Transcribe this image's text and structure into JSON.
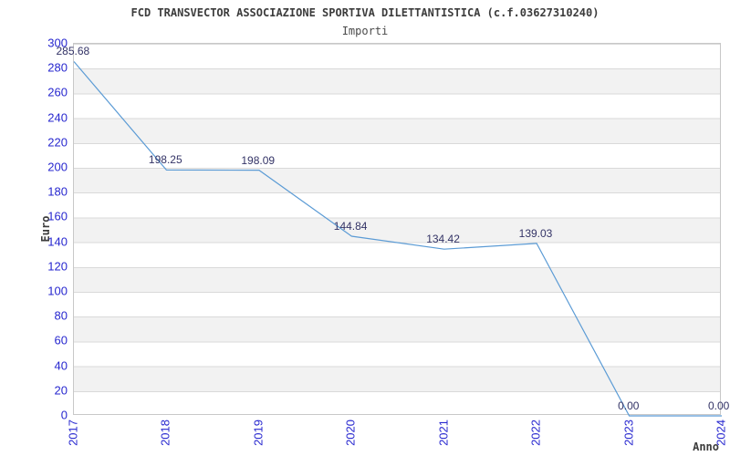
{
  "title": "FCD TRANSVECTOR ASSOCIAZIONE SPORTIVA DILETTANTISTICA (c.f.03627310240)",
  "subtitle": "Importi",
  "chart_data": {
    "type": "line",
    "x": [
      2017,
      2018,
      2019,
      2020,
      2021,
      2022,
      2023,
      2024
    ],
    "series": [
      {
        "name": "Importi",
        "values": [
          285.68,
          198.25,
          198.09,
          144.84,
          134.42,
          139.03,
          0.0,
          0.0
        ]
      }
    ],
    "data_labels": [
      "285.68",
      "198.25",
      "198.09",
      "144.84",
      "134.42",
      "139.03",
      "0.00",
      "0.00"
    ],
    "xlabel": "Anno",
    "ylabel": "Euro",
    "ylim": [
      0,
      300
    ],
    "ytick_step": 20,
    "grid": "horizontal-bands",
    "legend": "none"
  },
  "colors": {
    "line": "#5b9bd5",
    "tick_label": "#2727cf",
    "data_label": "#333366",
    "title": "#3c3c3c",
    "subtitle": "#4a4a4a",
    "band": "#f2f2f2",
    "gridline": "#d9d9d9",
    "border": "#c8c8c8"
  }
}
